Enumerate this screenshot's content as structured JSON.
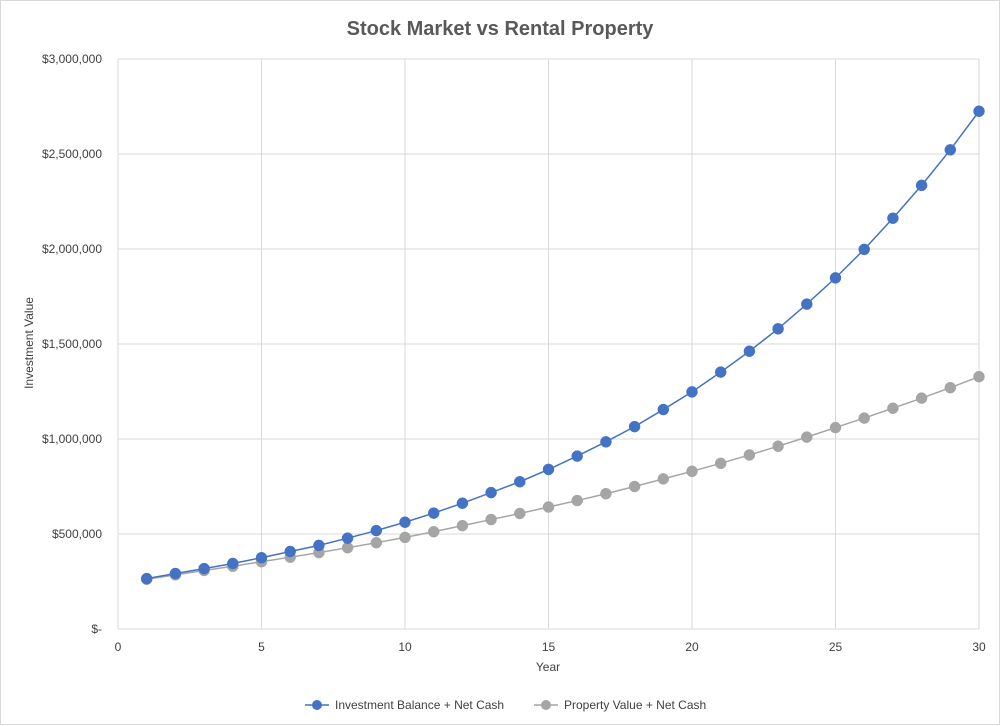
{
  "chart_data": {
    "type": "line",
    "title": "Stock Market vs Rental Property",
    "xlabel": "Year",
    "ylabel": "Investment Value",
    "xlim": [
      0,
      30
    ],
    "ylim": [
      0,
      3000000
    ],
    "xticks": [
      0,
      5,
      10,
      15,
      20,
      25,
      30
    ],
    "xtick_labels": [
      "0",
      "5",
      "10",
      "15",
      "20",
      "25",
      "30"
    ],
    "yticks": [
      0,
      500000,
      1000000,
      1500000,
      2000000,
      2500000,
      3000000
    ],
    "ytick_labels": [
      "$-",
      "$500,000",
      "$1,000,000",
      "$1,500,000",
      "$2,000,000",
      "$2,500,000",
      "$3,000,000"
    ],
    "grid": true,
    "legend_position": "bottom",
    "x": [
      1,
      2,
      3,
      4,
      5,
      6,
      7,
      8,
      9,
      10,
      11,
      12,
      13,
      14,
      15,
      16,
      17,
      18,
      19,
      20,
      21,
      22,
      23,
      24,
      25,
      26,
      27,
      28,
      29,
      30
    ],
    "series": [
      {
        "name": "Investment Balance + Net Cash",
        "color": "#4472c4",
        "values": [
          265000,
          292000,
          318000,
          345000,
          375000,
          408000,
          440000,
          478000,
          518000,
          562000,
          610000,
          662000,
          718000,
          775000,
          840000,
          910000,
          985000,
          1065000,
          1155000,
          1248000,
          1352000,
          1462000,
          1580000,
          1710000,
          1848000,
          1998000,
          2162000,
          2335000,
          2522000,
          2725000
        ]
      },
      {
        "name": "Property Value + Net Cash",
        "color": "#a5a5a5",
        "values": [
          262000,
          285000,
          308000,
          330000,
          354000,
          378000,
          402000,
          428000,
          454000,
          482000,
          512000,
          544000,
          576000,
          608000,
          642000,
          676000,
          712000,
          750000,
          790000,
          830000,
          872000,
          916000,
          962000,
          1010000,
          1060000,
          1110000,
          1162000,
          1215000,
          1270000,
          1328000
        ]
      }
    ]
  }
}
